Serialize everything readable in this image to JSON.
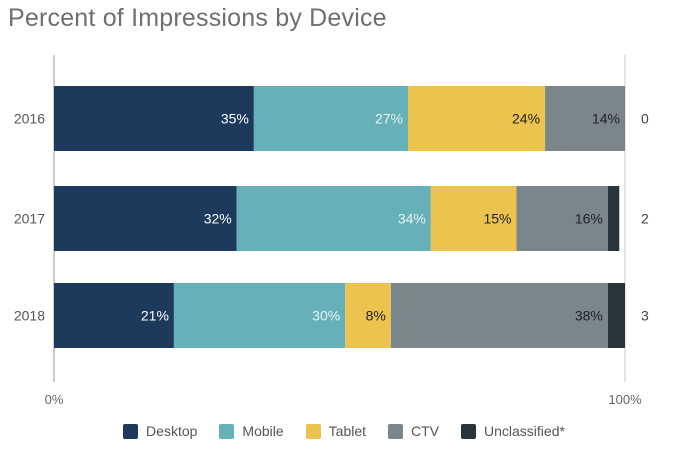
{
  "chart_data": {
    "type": "bar",
    "orientation": "horizontal",
    "stacked": true,
    "title": "Percent of Impressions by Device",
    "categories": [
      "2016",
      "2017",
      "2018"
    ],
    "series": [
      {
        "name": "Desktop",
        "values": [
          35,
          32,
          21
        ],
        "labels": [
          "35%",
          "32%",
          "21%"
        ],
        "color": "#1d3a5c",
        "label_color": "#ffffff"
      },
      {
        "name": "Mobile",
        "values": [
          27,
          34,
          30
        ],
        "labels": [
          "27%",
          "34%",
          "30%"
        ],
        "color": "#65b0b9",
        "label_color": "#e9f4f5"
      },
      {
        "name": "Tablet",
        "values": [
          24,
          15,
          8
        ],
        "labels": [
          "24%",
          "15%",
          "8%"
        ],
        "color": "#ecc34f",
        "label_color": "#222222"
      },
      {
        "name": "CTV",
        "values": [
          14,
          16,
          38
        ],
        "labels": [
          "14%",
          "16%",
          "38%"
        ],
        "color": "#7b858c",
        "label_color": "#222222"
      },
      {
        "name": "Unclassified*",
        "values": [
          0,
          2,
          3
        ],
        "labels": [
          "",
          "",
          ""
        ],
        "color": "#29343b",
        "label_color": "#ffffff"
      }
    ],
    "right_labels": [
      "0",
      "2",
      "3"
    ],
    "xlim": [
      0,
      100
    ],
    "x_ticks": [
      "0%",
      "100%"
    ],
    "grid": false,
    "legend_position": "bottom"
  }
}
